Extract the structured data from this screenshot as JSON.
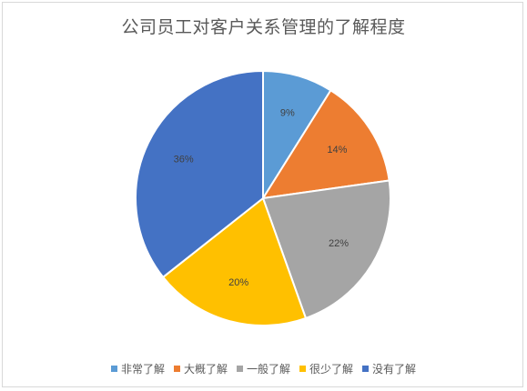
{
  "chart_data": {
    "type": "pie",
    "title": "公司员工对客户关系管理的了解程度",
    "categories": [
      "非常了解",
      "大概了解",
      "一般了解",
      "很少了解",
      "没有了解"
    ],
    "values": [
      9,
      14,
      22,
      20,
      36
    ],
    "labels": [
      "9%",
      "14%",
      "22%",
      "20%",
      "36%"
    ],
    "colors": [
      "#5b9bd5",
      "#ed7d31",
      "#a5a5a5",
      "#ffc000",
      "#4472c4"
    ],
    "start_angle_deg": 0,
    "direction": "clockwise",
    "legend_position": "bottom"
  }
}
